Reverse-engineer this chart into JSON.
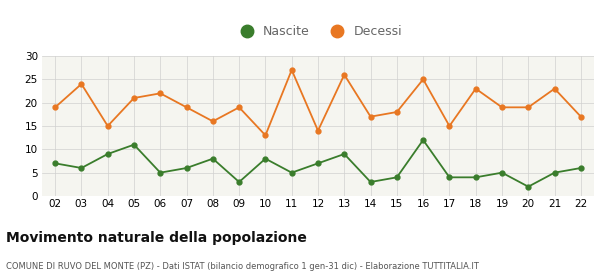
{
  "years": [
    "02",
    "03",
    "04",
    "05",
    "06",
    "07",
    "08",
    "09",
    "10",
    "11",
    "12",
    "13",
    "14",
    "15",
    "16",
    "17",
    "18",
    "19",
    "20",
    "21",
    "22"
  ],
  "nascite": [
    7,
    6,
    9,
    11,
    5,
    6,
    8,
    3,
    8,
    5,
    7,
    9,
    3,
    4,
    12,
    4,
    4,
    5,
    2,
    5,
    6
  ],
  "decessi": [
    19,
    24,
    15,
    21,
    22,
    19,
    16,
    19,
    13,
    27,
    14,
    26,
    17,
    18,
    25,
    15,
    23,
    19,
    19,
    23,
    17
  ],
  "nascite_color": "#3a7d2c",
  "decessi_color": "#e87722",
  "plot_bg_color": "#f5f5f0",
  "fig_bg_color": "#ffffff",
  "title": "Movimento naturale della popolazione",
  "subtitle": "COMUNE DI RUVO DEL MONTE (PZ) - Dati ISTAT (bilancio demografico 1 gen-31 dic) - Elaborazione TUTTITALIA.IT",
  "ylim": [
    0,
    30
  ],
  "yticks": [
    0,
    5,
    10,
    15,
    20,
    25,
    30
  ],
  "legend_nascite": "Nascite",
  "legend_decessi": "Decessi"
}
